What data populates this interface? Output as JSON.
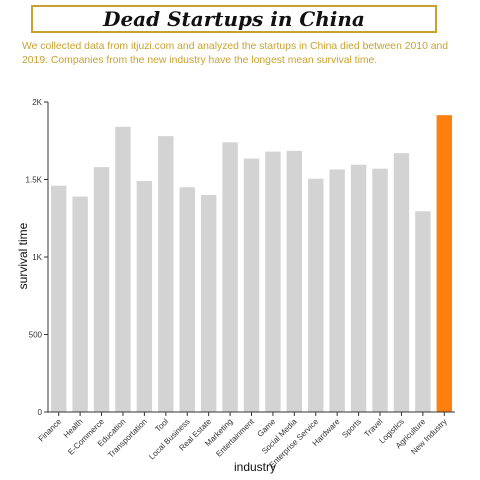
{
  "header": {
    "title": "Dead Startups in China",
    "subtitle": "We collected data from itjuzi.com and analyzed the startups in China died between 2010 and 2019. Companies from the new industry have the longest mean survival time."
  },
  "colors": {
    "bar": "#d3d3d3",
    "highlight": "#ff7f0e",
    "accent": "#c8a230"
  },
  "chart_data": {
    "type": "bar",
    "xlabel": "industry",
    "ylabel": "survival time",
    "ylim": [
      0,
      2000
    ],
    "yticks": [
      0,
      500,
      1000,
      1500,
      2000
    ],
    "ytick_labels": [
      "0",
      "500",
      "1K",
      "1.5K",
      "2K"
    ],
    "categories": [
      "Finance",
      "Health",
      "E-Commerce",
      "Education",
      "Transportation",
      "Tool",
      "Local Business",
      "Real Estate",
      "Marketing",
      "Entertainment",
      "Game",
      "Social Media",
      "Enterprise Service",
      "Hardware",
      "Sports",
      "Travel",
      "Logistics",
      "Agriculture",
      "New Industry"
    ],
    "values": [
      1460,
      1390,
      1580,
      1840,
      1490,
      1780,
      1450,
      1400,
      1740,
      1635,
      1680,
      1685,
      1505,
      1565,
      1595,
      1570,
      1670,
      1295,
      1915
    ],
    "highlight": "New Industry"
  }
}
